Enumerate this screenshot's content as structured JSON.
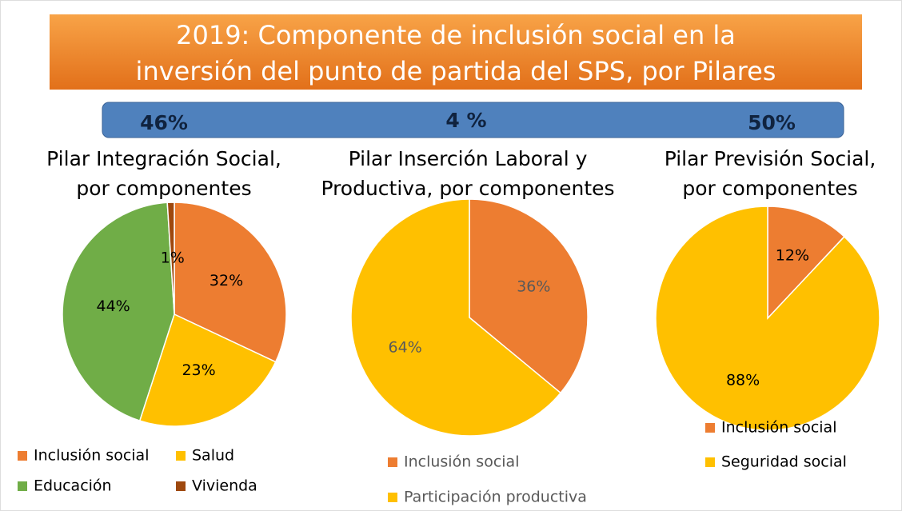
{
  "title": [
    "2019: Componente de inclusión social en la",
    "inversión del punto de partida del SPS, por Pilares"
  ],
  "shares": [
    "46%",
    "4 %",
    "50%"
  ],
  "chart_data": [
    {
      "type": "pie",
      "title": [
        "Pilar Integración Social,",
        "por componentes"
      ],
      "categories": [
        "Inclusión social",
        "Salud",
        "Educación",
        "Vivienda"
      ],
      "values": [
        32,
        23,
        44,
        1
      ],
      "value_labels": [
        "32%",
        "23%",
        "44%",
        "1%"
      ],
      "colors": [
        "#ed7d31",
        "#ffc000",
        "#70ad47",
        "#9e480e"
      ]
    },
    {
      "type": "pie",
      "title": [
        "Pilar Inserción Laboral y",
        "Productiva, por componentes"
      ],
      "categories": [
        "Inclusión social",
        "Participación productiva"
      ],
      "values": [
        36,
        64
      ],
      "value_labels": [
        "36%",
        "64%"
      ],
      "colors": [
        "#ed7d31",
        "#ffc000"
      ]
    },
    {
      "type": "pie",
      "title": [
        "Pilar Previsión Social,",
        "por componentes"
      ],
      "categories": [
        "Inclusión social",
        "Seguridad social"
      ],
      "values": [
        12,
        88
      ],
      "value_labels": [
        "12%",
        "88%"
      ],
      "colors": [
        "#ed7d31",
        "#ffc000"
      ]
    }
  ]
}
